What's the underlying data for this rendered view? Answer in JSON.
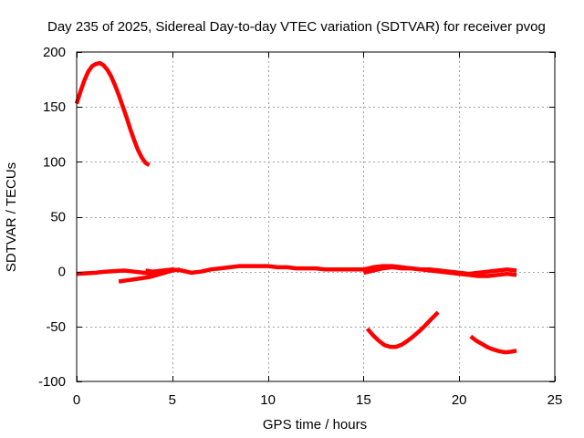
{
  "chart_data": {
    "type": "line",
    "title": "Day 235 of 2025, Sidereal Day-to-day VTEC variation (SDTVAR) for receiver pvog",
    "xlabel": "GPS time / hours",
    "ylabel": "SDTVAR / TECUs",
    "xlim": [
      0,
      25
    ],
    "ylim": [
      -100,
      200
    ],
    "xticks": [
      0,
      5,
      10,
      15,
      20,
      25
    ],
    "xtick_labels": [
      "0",
      "5",
      "10",
      "15",
      "20",
      "25"
    ],
    "yticks": [
      -100,
      -50,
      0,
      50,
      100,
      150,
      200
    ],
    "ytick_labels": [
      "-100",
      "-50",
      "0",
      "50",
      "100",
      "150",
      "200"
    ],
    "grid": true,
    "line_color": "#ff0000",
    "series": [
      {
        "name": "arc-1",
        "x": [
          0.0,
          0.2,
          0.4,
          0.6,
          0.8,
          1.0,
          1.2,
          1.4,
          1.6,
          1.8,
          2.0,
          2.2,
          2.4,
          2.6,
          2.8,
          3.0,
          3.2,
          3.4,
          3.6,
          3.8
        ],
        "y": [
          153,
          164,
          174,
          182,
          187,
          189,
          190,
          188,
          184,
          178,
          170,
          161,
          151,
          141,
          130,
          120,
          111,
          104,
          99,
          97
        ]
      },
      {
        "name": "arc-2",
        "x": [
          0.0,
          0.5,
          1.0,
          1.5,
          2.0,
          2.5,
          3.0,
          3.5,
          4.0,
          4.5
        ],
        "y": [
          -2,
          -1.5,
          -1,
          0,
          0.5,
          1,
          0,
          -1,
          -2,
          -1
        ]
      },
      {
        "name": "arc-3",
        "x": [
          2.2,
          2.6,
          3.0,
          3.4,
          3.8,
          4.2,
          4.6,
          5.0,
          5.4
        ],
        "y": [
          -9,
          -8,
          -7,
          -6,
          -5,
          -3,
          -1,
          1,
          2
        ]
      },
      {
        "name": "arc-4",
        "x": [
          3.6,
          4.0,
          4.5,
          5.0,
          5.5,
          6.0,
          6.5,
          7.0,
          7.5,
          8.0,
          8.5,
          9.0,
          9.5,
          10.0,
          10.5,
          11.0,
          11.5,
          12.0,
          12.5,
          13.0,
          13.5,
          14.0,
          14.5,
          15.0,
          15.5
        ],
        "y": [
          1,
          0,
          1,
          2,
          1,
          -1,
          0,
          2,
          3,
          4,
          5,
          5,
          5,
          5,
          4,
          4,
          3,
          3,
          3,
          2,
          2,
          2,
          2,
          2,
          3
        ]
      },
      {
        "name": "arc-5",
        "x": [
          15.0,
          15.5,
          16.0,
          16.5,
          17.0,
          17.5,
          18.0,
          18.5,
          19.0,
          19.5,
          20.0,
          20.5,
          21.0,
          21.5,
          22.0,
          22.5,
          23.0
        ],
        "y": [
          -1,
          1,
          3,
          4,
          3,
          3,
          2,
          2,
          1,
          0,
          -1,
          -2,
          -1,
          0,
          1,
          2,
          1
        ]
      },
      {
        "name": "arc-6",
        "x": [
          15.0,
          15.5,
          16.0,
          16.5,
          17.0,
          17.5,
          18.0,
          18.5,
          19.0,
          19.5,
          20.0,
          20.5,
          21.0,
          21.5,
          22.0,
          22.5,
          23.0
        ],
        "y": [
          2,
          4,
          5,
          5,
          4,
          3,
          2,
          1,
          0,
          -1,
          -2,
          -3,
          -4,
          -4,
          -3,
          -2,
          -3
        ]
      },
      {
        "name": "arc-7",
        "x": [
          15.2,
          15.5,
          15.8,
          16.1,
          16.4,
          16.7,
          17.0,
          17.3,
          17.6,
          17.9,
          18.2,
          18.5,
          18.9
        ],
        "y": [
          -52,
          -58,
          -63,
          -67,
          -68.5,
          -68.5,
          -66.5,
          -63,
          -59,
          -54.5,
          -49.5,
          -44,
          -37
        ]
      },
      {
        "name": "arc-8",
        "x": [
          20.6,
          20.9,
          21.2,
          21.5,
          21.8,
          22.1,
          22.4,
          22.7,
          23.0
        ],
        "y": [
          -59,
          -63,
          -66,
          -69,
          -71,
          -72.5,
          -73.5,
          -73,
          -72
        ]
      }
    ]
  }
}
